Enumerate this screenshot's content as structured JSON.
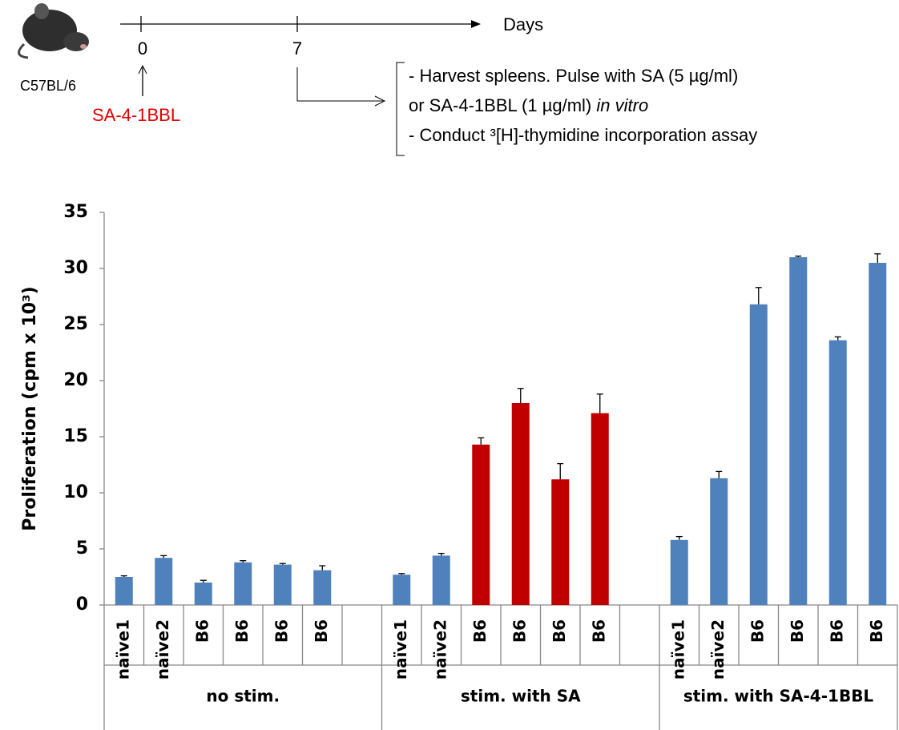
{
  "schematic": {
    "strain": "C57BL/6",
    "day0": "0",
    "day7": "7",
    "axis_label": "Days",
    "treatment": "SA-4-1BBL",
    "step1": "- Harvest spleens. Pulse with SA (5 µg/ml)",
    "step2": "or SA-4-1BBL (1 µg/ml)",
    "step2_italic": "in vitro",
    "step3": "- Conduct ³[H]-thymidine incorporation assay"
  },
  "chart_data": {
    "type": "bar",
    "y_label": "Proliferation (cpm x 10³)",
    "categories": [
      "naïve1",
      "naïve2",
      "B6",
      "B6",
      "B6",
      "B6",
      null,
      "naïve1",
      "naïve2",
      "B6",
      "B6",
      "B6",
      "B6",
      null,
      "naïve1",
      "naïve2",
      "B6",
      "B6",
      "B6",
      "B6"
    ],
    "values": [
      2.5,
      4.2,
      2.0,
      3.8,
      3.6,
      3.1,
      null,
      2.7,
      4.4,
      14.3,
      18.0,
      11.2,
      17.1,
      null,
      5.8,
      11.3,
      26.8,
      31.0,
      23.6,
      30.5
    ],
    "errors": [
      0.1,
      0.2,
      0.2,
      0.15,
      0.1,
      0.4,
      null,
      0.1,
      0.2,
      0.6,
      1.3,
      1.4,
      1.7,
      null,
      0.3,
      0.6,
      1.5,
      0.1,
      0.3,
      0.8
    ],
    "colors": [
      "#4f81bd",
      "#4f81bd",
      "#4f81bd",
      "#4f81bd",
      "#4f81bd",
      "#4f81bd",
      null,
      "#4f81bd",
      "#4f81bd",
      "#c00000",
      "#c00000",
      "#c00000",
      "#c00000",
      null,
      "#4f81bd",
      "#4f81bd",
      "#4f81bd",
      "#4f81bd",
      "#4f81bd",
      "#4f81bd"
    ],
    "groups": [
      "no stim.",
      "stim. with SA",
      "stim. with SA-4-1BBL"
    ],
    "ylim": [
      0,
      35
    ],
    "yticks": [
      0,
      5,
      10,
      15,
      20,
      25,
      30,
      35
    ]
  }
}
